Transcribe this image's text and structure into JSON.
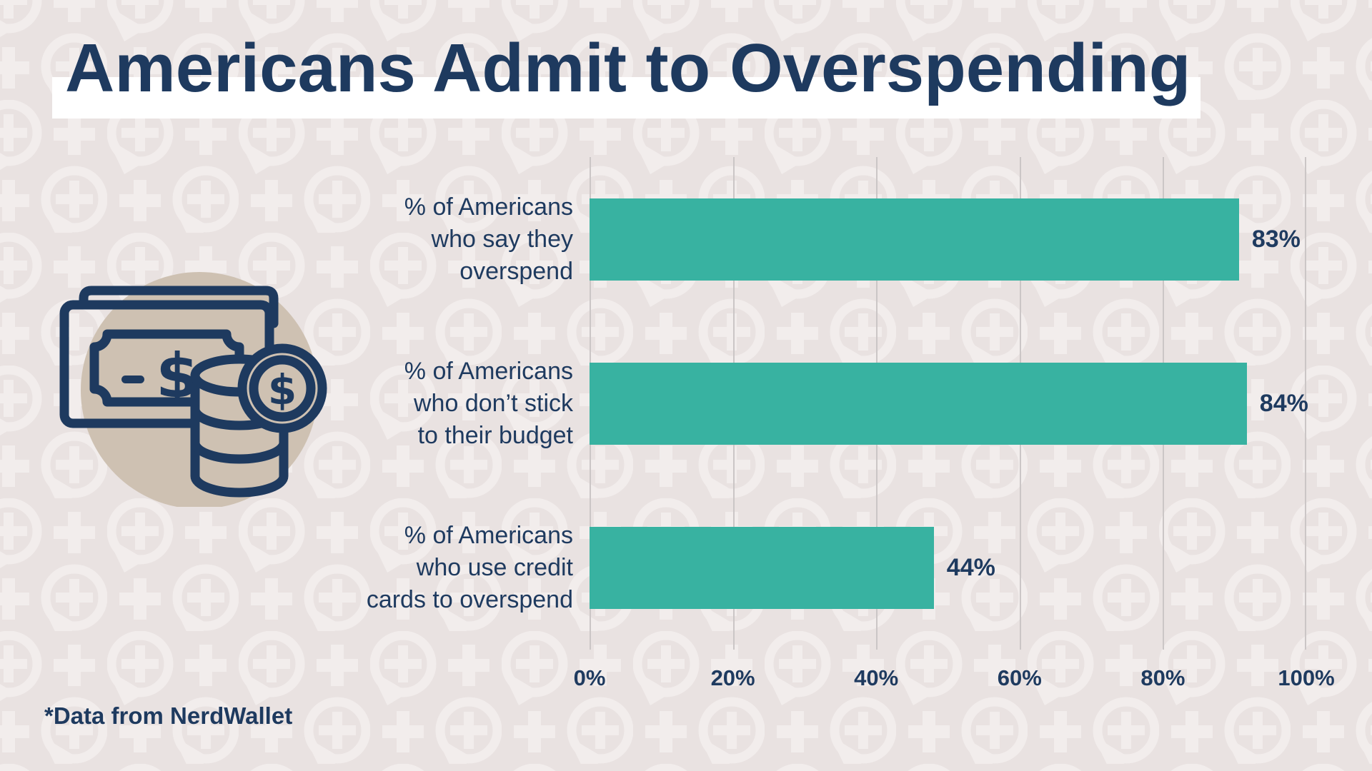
{
  "page": {
    "title": "Americans Admit to Overspending",
    "footnote": "*Data from NerdWallet"
  },
  "colors": {
    "background": "#E9E2E1",
    "pattern": "#F2EDEC",
    "bar_color": "#38B2A1",
    "text_navy": "#1E3A5F",
    "icon_circle": "#CEC1B2",
    "gridline": "#CBC6C6",
    "title_highlight": "#FFFFFF"
  },
  "icons": {
    "money_icon": "dollar-bills-and-coins",
    "pattern_motif": "speech-bubble-with-plus"
  },
  "chart_data": {
    "type": "bar",
    "orientation": "horizontal",
    "title": "Americans Admit to Overspending",
    "xlabel": "",
    "ylabel": "",
    "xlim": [
      0,
      100
    ],
    "grid": "vertical-only",
    "legend": "none",
    "bar_color": "#38B2A1",
    "categories": [
      "% of Americans who say they overspend",
      "% of Americans who don’t stick to their budget",
      "% of Americans who use credit cards to overspend"
    ],
    "values": [
      83,
      84,
      44
    ],
    "rows": [
      {
        "label_lines": [
          "% of Americans",
          "who say they",
          "overspend"
        ],
        "value": 83,
        "value_label": "83%"
      },
      {
        "label_lines": [
          "% of Americans",
          "who don’t stick",
          "to their budget"
        ],
        "value": 84,
        "value_label": "84%"
      },
      {
        "label_lines": [
          "% of Americans",
          "who use credit",
          "cards to overspend"
        ],
        "value": 44,
        "value_label": "44%"
      }
    ],
    "x_ticks": [
      "0%",
      "20%",
      "40%",
      "60%",
      "80%",
      "100%"
    ]
  }
}
